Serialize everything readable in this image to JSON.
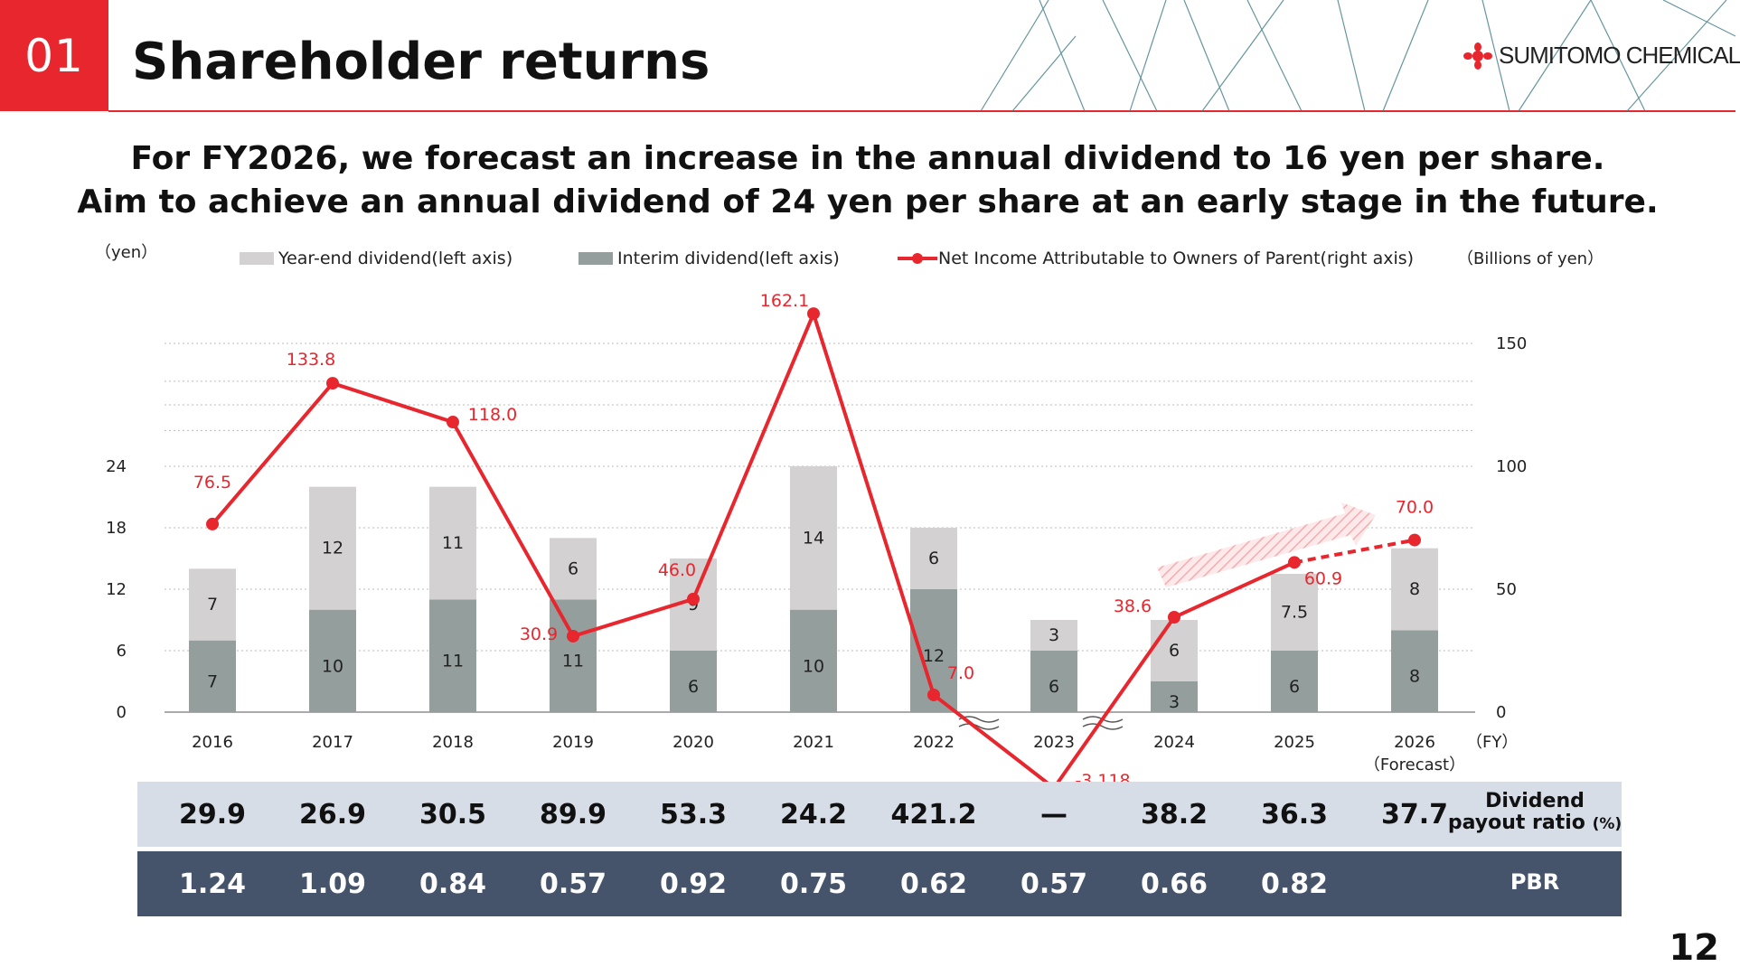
{
  "header": {
    "section_number": "01",
    "title": "Shareholder returns",
    "logo_text": "SUMITOMO CHEMICAL",
    "accent_color": "#e8262e"
  },
  "headline": {
    "line1": "For FY2026, we forecast an increase in the annual dividend to 16 yen per share.",
    "line2": "Aim to achieve an annual dividend of 24 yen per share at an early stage in the future."
  },
  "chart_data": {
    "type": "bar",
    "stacked": true,
    "categories": [
      "2016",
      "2017",
      "2018",
      "2019",
      "2020",
      "2021",
      "2022",
      "2023",
      "2024",
      "2025",
      "2026"
    ],
    "category_sublabels": [
      "",
      "",
      "",
      "",
      "",
      "",
      "",
      "",
      "",
      "",
      "（Forecast）"
    ],
    "x_unit_label": "（FY）",
    "left_axis": {
      "unit_label": "（yen）",
      "ticks": [
        0,
        6,
        12,
        18,
        24
      ],
      "ylim": [
        0,
        24
      ]
    },
    "right_axis": {
      "unit_label": "（Billions of yen）",
      "ticks": [
        0,
        50,
        100,
        150
      ],
      "ylim": [
        0,
        150
      ]
    },
    "grid": true,
    "legend_position": "top",
    "series": [
      {
        "name": "Interim dividend(left axis)",
        "kind": "bar",
        "axis": "left",
        "color": "#949e9c",
        "values": [
          7,
          10,
          11,
          11,
          6,
          10,
          12,
          6,
          3,
          6,
          8
        ],
        "labels": [
          "7",
          "10",
          "11",
          "11",
          "6",
          "10",
          "12",
          "6",
          "3",
          "6",
          "8"
        ]
      },
      {
        "name": "Year-end dividend(left axis)",
        "kind": "bar",
        "axis": "left",
        "color": "#d3d1d1",
        "values": [
          7,
          12,
          11,
          6,
          9,
          14,
          6,
          3,
          6,
          7.5,
          8
        ],
        "labels": [
          "7",
          "12",
          "11",
          "6",
          "9",
          "14",
          "6",
          "3",
          "6",
          "7.5",
          "8"
        ]
      },
      {
        "name": "Net Income Attributable to Owners of Parent(right axis)",
        "kind": "line",
        "axis": "right",
        "color": "#e8262e",
        "values": [
          76.5,
          133.8,
          118.0,
          30.9,
          46.0,
          162.1,
          7.0,
          -3118,
          38.6,
          60.9,
          70.0
        ],
        "labels": [
          "76.5",
          "133.8",
          "118.0",
          "30.9",
          "46.0",
          "162.1",
          "7.0",
          "-3,118",
          "38.6",
          "60.9",
          "70.0"
        ],
        "axis_break": true,
        "forecast_from_index": 9
      }
    ]
  },
  "table": {
    "payout": {
      "label_line1": "Dividend",
      "label_line2": "payout ratio",
      "unit": "(%)",
      "values": [
        "29.9",
        "26.9",
        "30.5",
        "89.9",
        "53.3",
        "24.2",
        "421.2",
        "—",
        "38.2",
        "36.3",
        "37.7"
      ]
    },
    "pbr": {
      "label": "PBR",
      "values": [
        "1.24",
        "1.09",
        "0.84",
        "0.57",
        "0.92",
        "0.75",
        "0.62",
        "0.57",
        "0.66",
        "0.82",
        ""
      ]
    }
  },
  "page_number": "12"
}
